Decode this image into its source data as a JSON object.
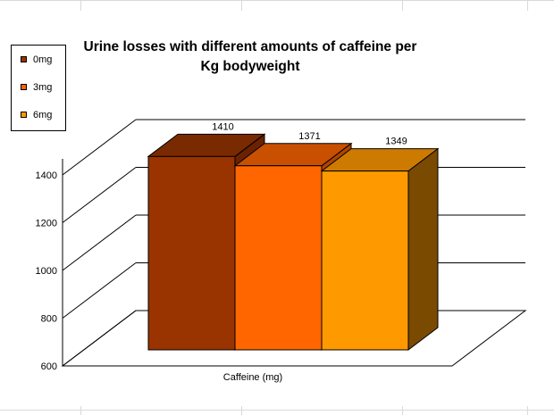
{
  "chart_data": {
    "type": "bar",
    "title": "Urine losses with different amounts of caffeine per Kg bodyweight",
    "title_lines": [
      "Urine losses with different amounts of caffeine per",
      "Kg bodyweight"
    ],
    "xlabel": "Caffeine (mg)",
    "ylabel": "",
    "ylim": [
      600,
      1400
    ],
    "yticks": [
      600,
      800,
      1000,
      1200,
      1400
    ],
    "grid": true,
    "three_d": true,
    "legend_position": "top-left",
    "series": [
      {
        "name": "0mg",
        "value": 1410,
        "label": "1410",
        "color": "#993300",
        "side_color": "#6b2200",
        "top_color": "#7a2a00"
      },
      {
        "name": "3mg",
        "value": 1371,
        "label": "1371",
        "color": "#ff6600",
        "side_color": "#b04400",
        "top_color": "#c85000"
      },
      {
        "name": "6mg",
        "value": 1349,
        "label": "1349",
        "color": "#ff9900",
        "side_color": "#7a4a00",
        "top_color": "#cc7a00"
      }
    ]
  }
}
